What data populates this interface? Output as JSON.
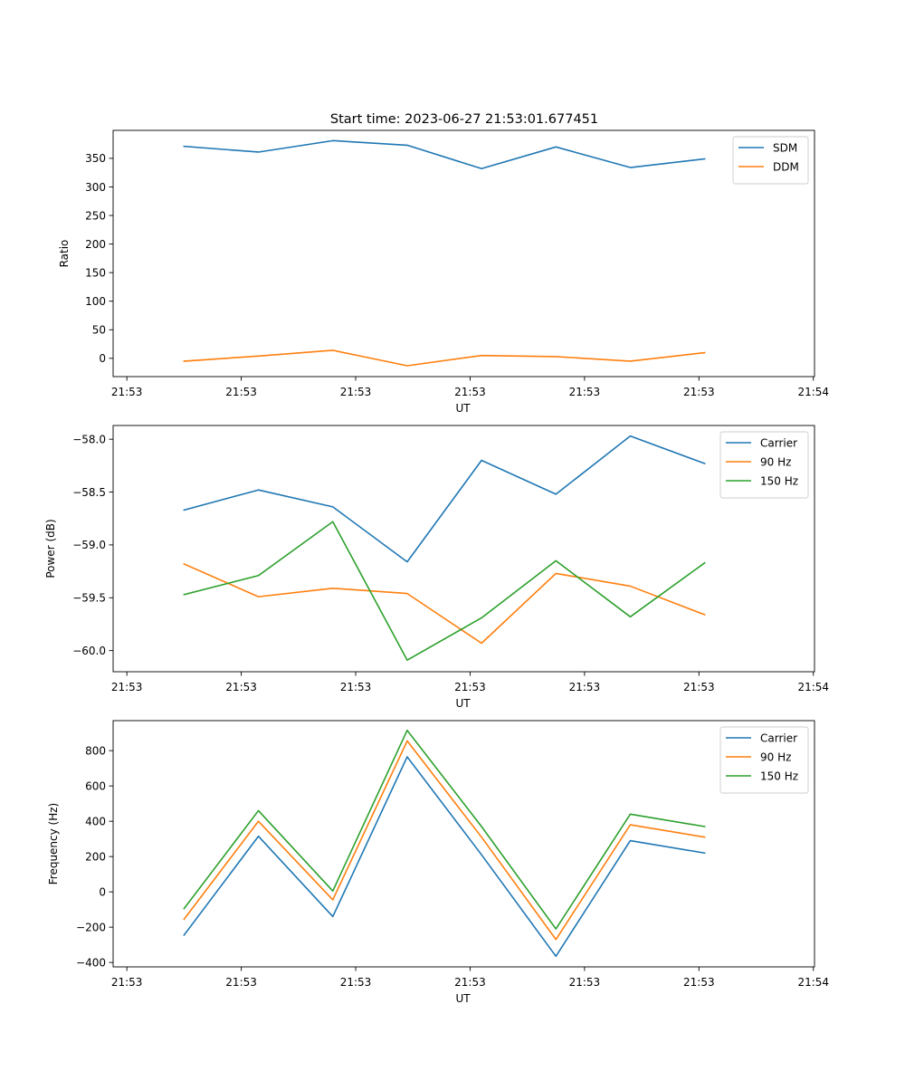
{
  "figure": {
    "title": "Start time: 2023-06-27 21:53:01.677451"
  },
  "chart_data": [
    {
      "type": "line",
      "xlabel": "UT",
      "ylabel": "Ratio",
      "x_tick_labels": [
        "21:53",
        "21:53",
        "21:53",
        "21:53",
        "21:53",
        "21:53",
        "21:54"
      ],
      "x_tick_values": [
        0,
        1,
        2,
        3,
        4,
        5,
        6
      ],
      "xlim": [
        -0.12,
        6.01
      ],
      "x": [
        0.5,
        1.15,
        1.8,
        2.45,
        3.1,
        3.75,
        4.4,
        5.05
      ],
      "yticks": [
        0,
        50,
        100,
        150,
        200,
        250,
        300,
        350
      ],
      "ylim": [
        -32,
        399
      ],
      "legend": "top-right",
      "grid": false,
      "series": [
        {
          "name": "SDM",
          "color": "#1f77b4",
          "values": [
            371,
            361,
            381,
            373,
            332,
            370,
            334,
            349
          ]
        },
        {
          "name": "DDM",
          "color": "#ff7f0e",
          "values": [
            -5,
            4,
            14,
            -13,
            5,
            3,
            -5,
            10
          ]
        }
      ]
    },
    {
      "type": "line",
      "xlabel": "UT",
      "ylabel": "Power (dB)",
      "x_tick_labels": [
        "21:53",
        "21:53",
        "21:53",
        "21:53",
        "21:53",
        "21:53",
        "21:54"
      ],
      "x_tick_values": [
        0,
        1,
        2,
        3,
        4,
        5,
        6
      ],
      "xlim": [
        -0.12,
        6.01
      ],
      "x": [
        0.5,
        1.15,
        1.8,
        2.45,
        3.1,
        3.75,
        4.4,
        5.05
      ],
      "yticks": [
        -60.0,
        -59.5,
        -59.0,
        -58.5,
        -58.0
      ],
      "ytick_labels": [
        "−60.0",
        "−59.5",
        "−59.0",
        "−58.5",
        "−58.0"
      ],
      "ylim": [
        -60.2,
        -57.87
      ],
      "legend": "top-right",
      "grid": false,
      "series": [
        {
          "name": "Carrier",
          "color": "#1f77b4",
          "values": [
            -58.67,
            -58.48,
            -58.64,
            -59.16,
            -58.2,
            -58.52,
            -57.97,
            -58.23
          ]
        },
        {
          "name": "90 Hz",
          "color": "#ff7f0e",
          "values": [
            -59.18,
            -59.49,
            -59.41,
            -59.46,
            -59.93,
            -59.27,
            -59.39,
            -59.66
          ]
        },
        {
          "name": "150 Hz",
          "color": "#2ca02c",
          "values": [
            -59.47,
            -59.29,
            -58.78,
            -60.09,
            -59.69,
            -59.15,
            -59.68,
            -59.17
          ]
        }
      ]
    },
    {
      "type": "line",
      "xlabel": "UT",
      "ylabel": "Frequency (Hz)",
      "x_tick_labels": [
        "21:53",
        "21:53",
        "21:53",
        "21:53",
        "21:53",
        "21:53",
        "21:54"
      ],
      "x_tick_values": [
        0,
        1,
        2,
        3,
        4,
        5,
        6
      ],
      "xlim": [
        -0.12,
        6.01
      ],
      "x": [
        0.5,
        1.15,
        1.8,
        2.45,
        3.1,
        3.75,
        4.4,
        5.05
      ],
      "yticks": [
        -400,
        -200,
        0,
        200,
        400,
        600,
        800
      ],
      "ytick_labels": [
        "−400",
        "−200",
        "0",
        "200",
        "400",
        "600",
        "800"
      ],
      "ylim": [
        -425,
        970
      ],
      "legend": "top-right",
      "grid": false,
      "series": [
        {
          "name": "Carrier",
          "color": "#1f77b4",
          "values": [
            -245,
            315,
            -140,
            765,
            210,
            -365,
            290,
            220
          ]
        },
        {
          "name": "90 Hz",
          "color": "#ff7f0e",
          "values": [
            -155,
            400,
            -45,
            855,
            310,
            -270,
            380,
            310
          ]
        },
        {
          "name": "150 Hz",
          "color": "#2ca02c",
          "values": [
            -95,
            460,
            5,
            915,
            370,
            -210,
            440,
            370
          ]
        }
      ]
    }
  ]
}
